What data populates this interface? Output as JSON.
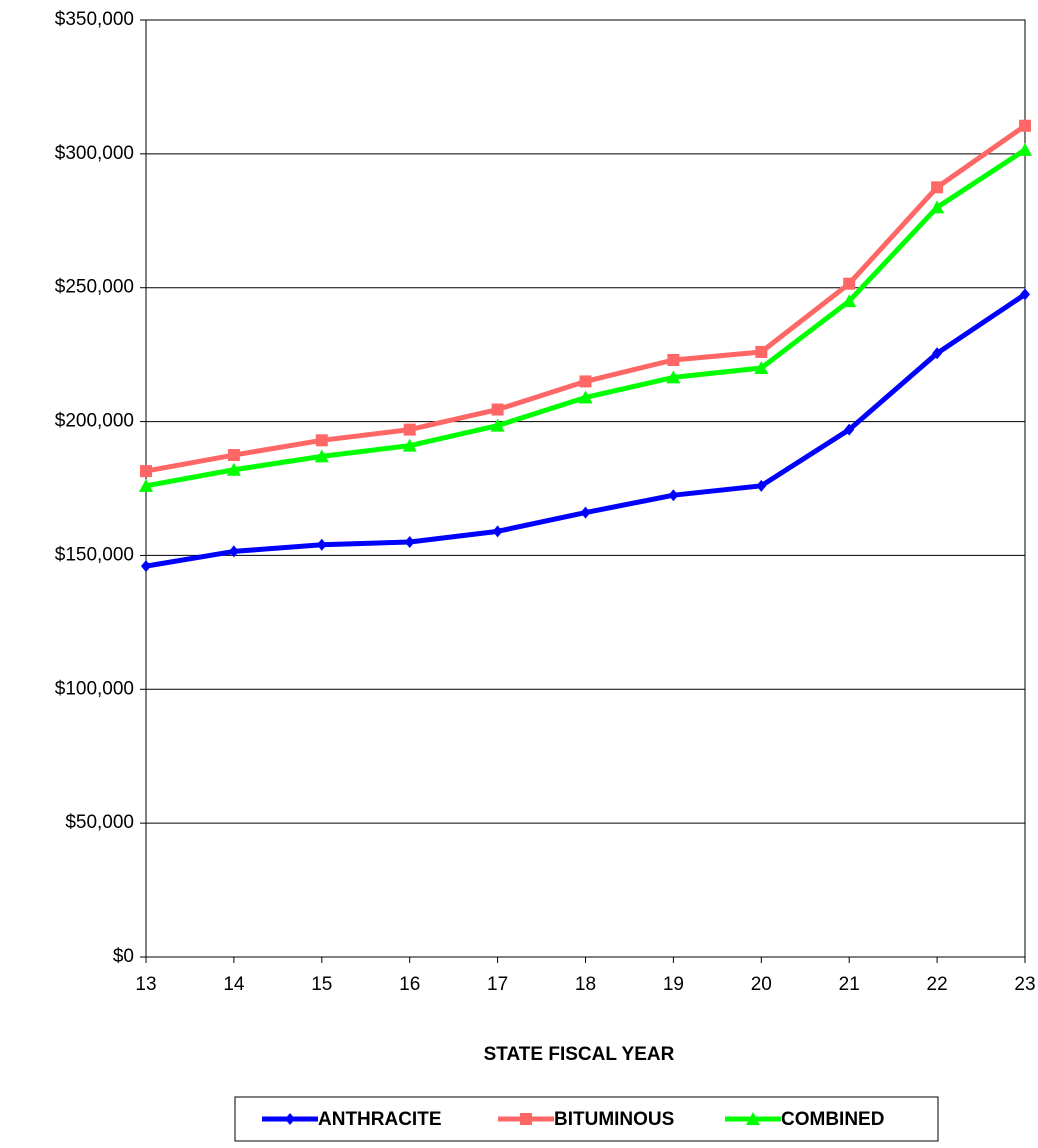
{
  "chart_data": {
    "type": "line",
    "x_label": "STATE FISCAL YEAR",
    "x": [
      13,
      14,
      15,
      16,
      17,
      18,
      19,
      20,
      21,
      22,
      23
    ],
    "xlim": [
      13,
      23
    ],
    "xticks": [
      13,
      14,
      15,
      16,
      17,
      18,
      19,
      20,
      21,
      22,
      23
    ],
    "ylim": [
      0,
      350000
    ],
    "yticks": [
      {
        "value": 0,
        "label": "$0"
      },
      {
        "value": 50000,
        "label": "$50,000"
      },
      {
        "value": 100000,
        "label": "$100,000"
      },
      {
        "value": 150000,
        "label": "$150,000"
      },
      {
        "value": 200000,
        "label": "$200,000"
      },
      {
        "value": 250000,
        "label": "$250,000"
      },
      {
        "value": 300000,
        "label": "$300,000"
      },
      {
        "value": 350000,
        "label": "$350,000"
      }
    ],
    "grid": true,
    "legend": "bottom",
    "series": [
      {
        "name": "ANTHRACITE",
        "color": "#0000ff",
        "marker": "diamond",
        "values": [
          146000,
          151500,
          154000,
          155000,
          159000,
          166000,
          172500,
          176000,
          197000,
          225500,
          247500
        ]
      },
      {
        "name": "BITUMINOUS",
        "color": "#ff6666",
        "marker": "square",
        "values": [
          181500,
          187500,
          193000,
          197000,
          204500,
          215000,
          223000,
          226000,
          251500,
          287500,
          310500
        ]
      },
      {
        "name": "COMBINED",
        "color": "#00ff00",
        "marker": "triangle",
        "values": [
          176000,
          182000,
          187000,
          191000,
          198500,
          209000,
          216500,
          220000,
          245000,
          280000,
          301500
        ]
      }
    ]
  }
}
